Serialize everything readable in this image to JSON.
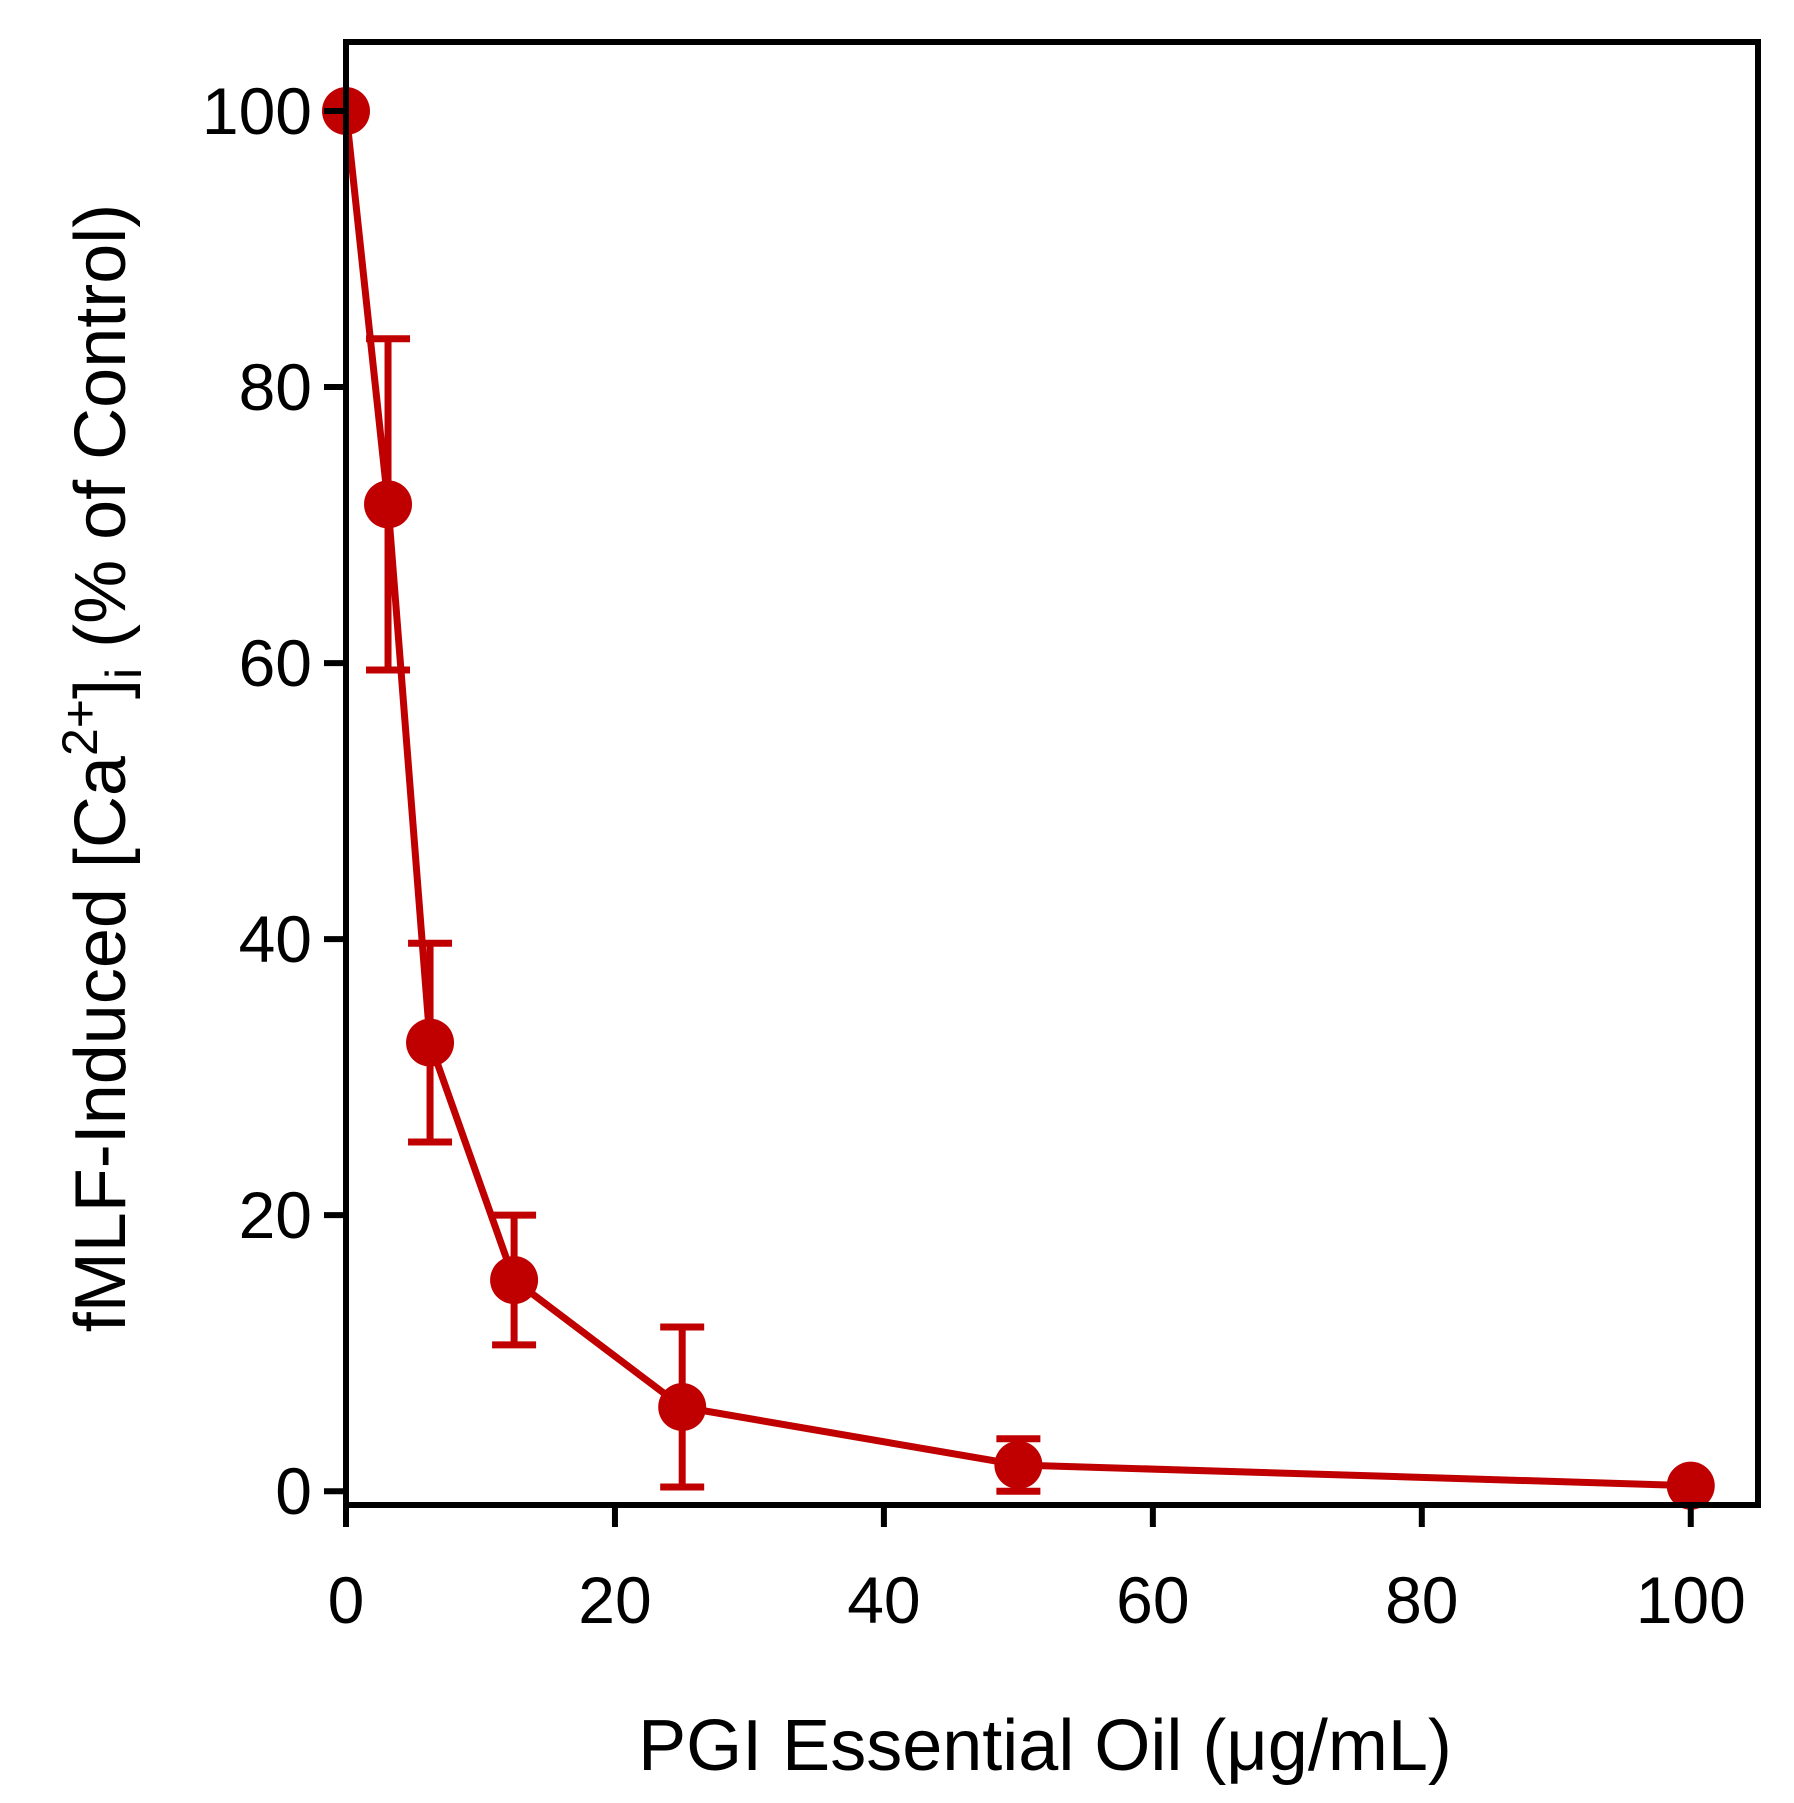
{
  "chart_data": {
    "type": "line",
    "title": "",
    "xlabel": "PGI Essential  Oil (μg/mL)",
    "ylabel": {
      "prefix": "fMLF-Induced [Ca",
      "superscript": "2+",
      "close": "]",
      "subscript": "i",
      "suffix": " (% of Control)"
    },
    "xlim": [
      0,
      105
    ],
    "ylim": [
      -1,
      105
    ],
    "x_ticks": [
      0,
      20,
      40,
      60,
      80,
      100
    ],
    "y_ticks": [
      0,
      20,
      40,
      60,
      80,
      100
    ],
    "x_tick_labels": [
      "0",
      "20",
      "40",
      "60",
      "80",
      "100"
    ],
    "y_tick_labels": [
      "0",
      "20",
      "40",
      "60",
      "80",
      "100"
    ],
    "series": [
      {
        "name": "PGI Essential Oil",
        "color": "#c00000",
        "x": [
          0,
          3.125,
          6.25,
          12.5,
          25,
          50,
          100
        ],
        "y": [
          100,
          71.5,
          32.5,
          15.3,
          6.1,
          1.9,
          0.4
        ],
        "error": [
          0,
          12,
          7.2,
          4.7,
          5.8,
          1.9,
          0
        ]
      }
    ]
  }
}
